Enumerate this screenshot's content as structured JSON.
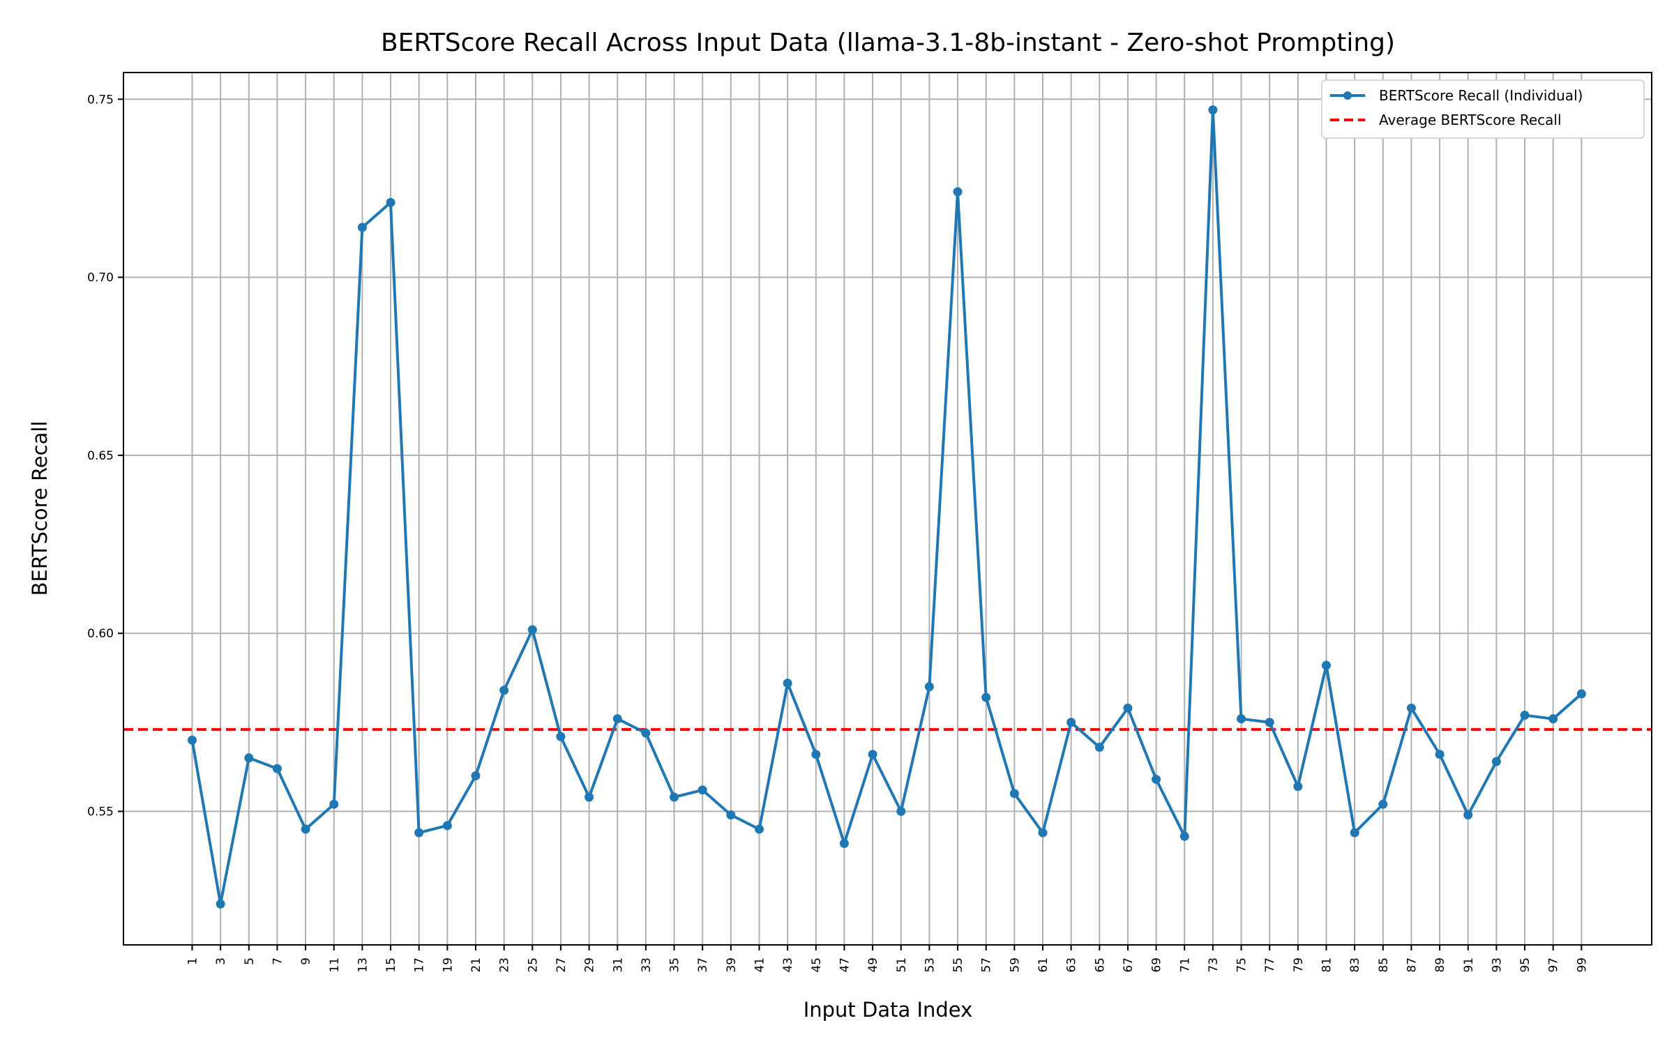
{
  "chart_data": {
    "type": "line",
    "title": "BERTScore Recall Across Input Data (llama-3.1-8b-instant - Zero-shot Prompting)",
    "xlabel": "Input Data Index",
    "ylabel": "BERTScore Recall",
    "x": [
      1,
      3,
      5,
      7,
      9,
      11,
      13,
      15,
      17,
      19,
      21,
      23,
      25,
      27,
      29,
      31,
      33,
      35,
      37,
      39,
      41,
      43,
      45,
      47,
      49,
      51,
      53,
      55,
      57,
      59,
      61,
      63,
      65,
      67,
      69,
      71,
      73,
      75,
      77,
      79,
      81,
      83,
      85,
      87,
      89,
      91,
      93,
      95,
      97,
      99
    ],
    "x_tick_labels": [
      "1",
      "3",
      "5",
      "7",
      "9",
      "11",
      "13",
      "15",
      "17",
      "19",
      "21",
      "23",
      "25",
      "27",
      "29",
      "31",
      "33",
      "35",
      "37",
      "39",
      "41",
      "43",
      "45",
      "47",
      "49",
      "51",
      "53",
      "55",
      "57",
      "59",
      "61",
      "63",
      "65",
      "67",
      "69",
      "71",
      "73",
      "75",
      "77",
      "79",
      "81",
      "83",
      "85",
      "87",
      "89",
      "91",
      "93",
      "95",
      "97",
      "99"
    ],
    "y_ticks": [
      0.55,
      0.6,
      0.65,
      0.7,
      0.75
    ],
    "y_tick_labels": [
      "0.55",
      "0.60",
      "0.65",
      "0.70",
      "0.75"
    ],
    "ylim": [
      0.5125,
      0.7575
    ],
    "series": [
      {
        "name": "BERTScore Recall (Individual)",
        "color": "#1f77b4",
        "values": [
          0.57,
          0.524,
          0.565,
          0.562,
          0.545,
          0.552,
          0.714,
          0.721,
          0.544,
          0.546,
          0.56,
          0.584,
          0.601,
          0.571,
          0.554,
          0.576,
          0.572,
          0.554,
          0.556,
          0.549,
          0.545,
          0.586,
          0.566,
          0.541,
          0.566,
          0.55,
          0.585,
          0.724,
          0.582,
          0.555,
          0.544,
          0.575,
          0.568,
          0.579,
          0.559,
          0.543,
          0.747,
          0.576,
          0.575,
          0.557,
          0.591,
          0.544,
          0.552,
          0.579,
          0.566,
          0.549,
          0.564,
          0.577,
          0.576,
          0.583
        ]
      }
    ],
    "average": {
      "name": "Average BERTScore Recall",
      "color": "#ff0000",
      "value": 0.573
    },
    "grid": true,
    "legend_position": "top-right"
  }
}
